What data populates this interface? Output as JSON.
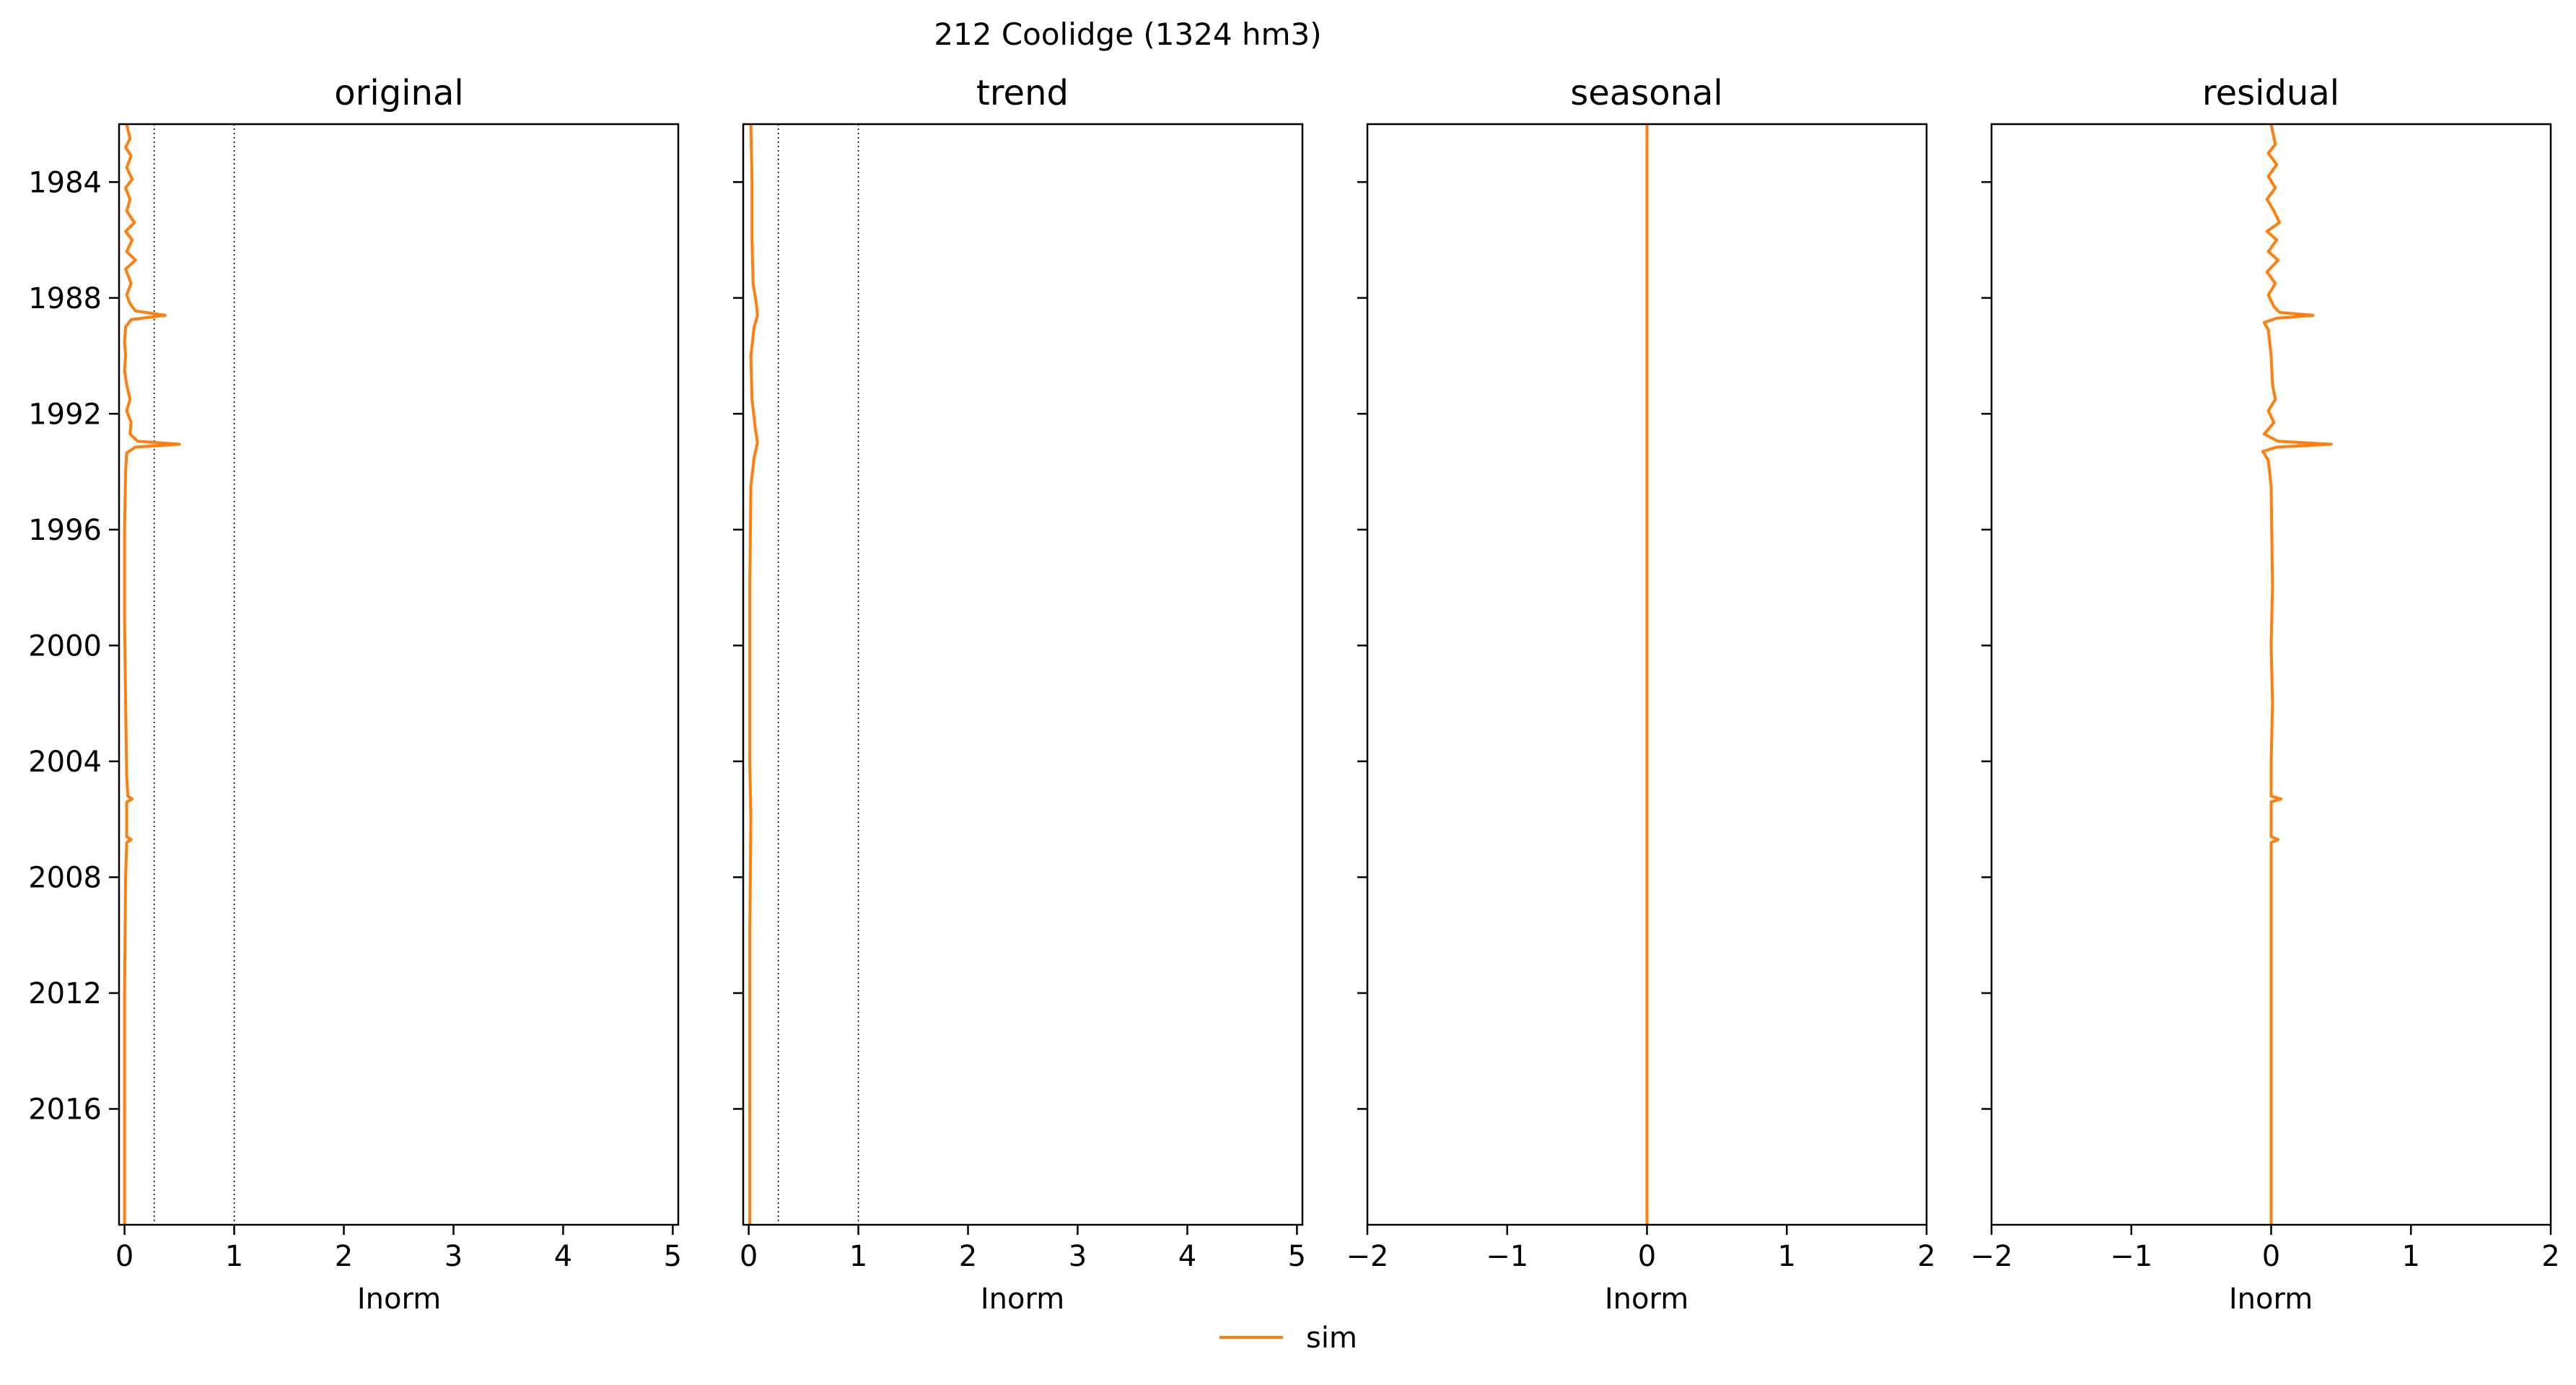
{
  "figure": {
    "suptitle": "212  Coolidge (1324 hm3)",
    "legend_label": "sim",
    "series_color": "#ff7f0e"
  },
  "chart_data": [
    {
      "type": "line",
      "orientation": "vertical-time",
      "title": "original",
      "xlabel": "Inorm",
      "xlim": [
        -0.05,
        5.05
      ],
      "xticks": [
        0,
        1,
        2,
        3,
        4,
        5
      ],
      "xtick_labels": [
        "0",
        "1",
        "2",
        "3",
        "4",
        "5"
      ],
      "ylim": [
        2020.0,
        1982.0
      ],
      "yticks": [
        1984,
        1988,
        1992,
        1996,
        2000,
        2004,
        2008,
        2012,
        2016
      ],
      "ytick_labels": [
        "1984",
        "1988",
        "1992",
        "1996",
        "2000",
        "2004",
        "2008",
        "2012",
        "2016"
      ],
      "reference_lines": [
        0.27,
        1.0
      ],
      "series": [
        {
          "name": "sim",
          "color": "#ff7f0e",
          "points": [
            {
              "y": 1982.0,
              "x": 0.02
            },
            {
              "y": 1982.5,
              "x": 0.05
            },
            {
              "y": 1982.8,
              "x": 0.01
            },
            {
              "y": 1983.1,
              "x": 0.06
            },
            {
              "y": 1983.5,
              "x": 0.02
            },
            {
              "y": 1983.9,
              "x": 0.07
            },
            {
              "y": 1984.2,
              "x": 0.01
            },
            {
              "y": 1984.6,
              "x": 0.05
            },
            {
              "y": 1985.0,
              "x": 0.02
            },
            {
              "y": 1985.4,
              "x": 0.09
            },
            {
              "y": 1985.7,
              "x": 0.01
            },
            {
              "y": 1986.0,
              "x": 0.07
            },
            {
              "y": 1986.4,
              "x": 0.02
            },
            {
              "y": 1986.7,
              "x": 0.1
            },
            {
              "y": 1987.0,
              "x": 0.01
            },
            {
              "y": 1987.5,
              "x": 0.06
            },
            {
              "y": 1987.9,
              "x": 0.02
            },
            {
              "y": 1988.2,
              "x": 0.05
            },
            {
              "y": 1988.45,
              "x": 0.1
            },
            {
              "y": 1988.6,
              "x": 0.37
            },
            {
              "y": 1988.75,
              "x": 0.06
            },
            {
              "y": 1989.0,
              "x": 0.01
            },
            {
              "y": 1989.5,
              "x": 0.0
            },
            {
              "y": 1990.0,
              "x": 0.01
            },
            {
              "y": 1990.5,
              "x": 0.0
            },
            {
              "y": 1991.0,
              "x": 0.02
            },
            {
              "y": 1991.5,
              "x": 0.05
            },
            {
              "y": 1991.9,
              "x": 0.02
            },
            {
              "y": 1992.3,
              "x": 0.06
            },
            {
              "y": 1992.7,
              "x": 0.05
            },
            {
              "y": 1992.95,
              "x": 0.12
            },
            {
              "y": 1993.05,
              "x": 0.5
            },
            {
              "y": 1993.15,
              "x": 0.1
            },
            {
              "y": 1993.35,
              "x": 0.02
            },
            {
              "y": 1994.0,
              "x": 0.01
            },
            {
              "y": 1996.0,
              "x": 0.0
            },
            {
              "y": 1999.0,
              "x": 0.0
            },
            {
              "y": 2002.0,
              "x": 0.01
            },
            {
              "y": 2004.5,
              "x": 0.02
            },
            {
              "y": 2005.2,
              "x": 0.03
            },
            {
              "y": 2005.3,
              "x": 0.07
            },
            {
              "y": 2005.4,
              "x": 0.02
            },
            {
              "y": 2006.6,
              "x": 0.02
            },
            {
              "y": 2006.7,
              "x": 0.06
            },
            {
              "y": 2006.8,
              "x": 0.02
            },
            {
              "y": 2008.0,
              "x": 0.01
            },
            {
              "y": 2012.0,
              "x": 0.0
            },
            {
              "y": 2016.0,
              "x": 0.0
            },
            {
              "y": 2020.0,
              "x": 0.0
            }
          ]
        }
      ]
    },
    {
      "type": "line",
      "orientation": "vertical-time",
      "title": "trend",
      "xlabel": "Inorm",
      "xlim": [
        -0.05,
        5.05
      ],
      "xticks": [
        0,
        1,
        2,
        3,
        4,
        5
      ],
      "xtick_labels": [
        "0",
        "1",
        "2",
        "3",
        "4",
        "5"
      ],
      "ylim": [
        2020.0,
        1982.0
      ],
      "yticks": [
        1984,
        1988,
        1992,
        1996,
        2000,
        2004,
        2008,
        2012,
        2016
      ],
      "reference_lines": [
        0.27,
        1.0
      ],
      "series": [
        {
          "name": "sim",
          "color": "#ff7f0e",
          "points": [
            {
              "y": 1982.0,
              "x": 0.02
            },
            {
              "y": 1984.0,
              "x": 0.03
            },
            {
              "y": 1986.0,
              "x": 0.03
            },
            {
              "y": 1987.5,
              "x": 0.04
            },
            {
              "y": 1988.2,
              "x": 0.07
            },
            {
              "y": 1988.6,
              "x": 0.08
            },
            {
              "y": 1989.0,
              "x": 0.05
            },
            {
              "y": 1990.0,
              "x": 0.02
            },
            {
              "y": 1991.5,
              "x": 0.03
            },
            {
              "y": 1992.5,
              "x": 0.06
            },
            {
              "y": 1993.0,
              "x": 0.08
            },
            {
              "y": 1993.5,
              "x": 0.05
            },
            {
              "y": 1994.5,
              "x": 0.02
            },
            {
              "y": 1998.0,
              "x": 0.01
            },
            {
              "y": 2004.0,
              "x": 0.01
            },
            {
              "y": 2006.0,
              "x": 0.02
            },
            {
              "y": 2010.0,
              "x": 0.01
            },
            {
              "y": 2020.0,
              "x": 0.01
            }
          ]
        }
      ]
    },
    {
      "type": "line",
      "orientation": "vertical-time",
      "title": "seasonal",
      "xlabel": "Inorm",
      "xlim": [
        -2,
        2
      ],
      "xticks": [
        -2,
        -1,
        0,
        1,
        2
      ],
      "xtick_labels": [
        "−2",
        "−1",
        "0",
        "1",
        "2"
      ],
      "ylim": [
        2020.0,
        1982.0
      ],
      "yticks": [
        1984,
        1988,
        1992,
        1996,
        2000,
        2004,
        2008,
        2012,
        2016
      ],
      "series": [
        {
          "name": "sim",
          "color": "#ff7f0e",
          "points": [
            {
              "y": 1982.0,
              "x": 0.0
            },
            {
              "y": 2020.0,
              "x": 0.0
            }
          ]
        }
      ]
    },
    {
      "type": "line",
      "orientation": "vertical-time",
      "title": "residual",
      "xlabel": "Inorm",
      "xlim": [
        -2,
        2
      ],
      "xticks": [
        -2,
        -1,
        0,
        1,
        2
      ],
      "xtick_labels": [
        "−2",
        "−1",
        "0",
        "1",
        "2"
      ],
      "ylim": [
        2020.0,
        1982.0
      ],
      "yticks": [
        1984,
        1988,
        1992,
        1996,
        2000,
        2004,
        2008,
        2012,
        2016
      ],
      "series": [
        {
          "name": "sim",
          "color": "#ff7f0e",
          "points": [
            {
              "y": 1982.0,
              "x": 0.0
            },
            {
              "y": 1982.7,
              "x": 0.03
            },
            {
              "y": 1983.0,
              "x": -0.02
            },
            {
              "y": 1983.4,
              "x": 0.04
            },
            {
              "y": 1983.8,
              "x": -0.02
            },
            {
              "y": 1984.2,
              "x": 0.03
            },
            {
              "y": 1984.6,
              "x": -0.03
            },
            {
              "y": 1985.0,
              "x": 0.02
            },
            {
              "y": 1985.4,
              "x": 0.06
            },
            {
              "y": 1985.7,
              "x": -0.03
            },
            {
              "y": 1986.0,
              "x": 0.04
            },
            {
              "y": 1986.4,
              "x": -0.02
            },
            {
              "y": 1986.7,
              "x": 0.05
            },
            {
              "y": 1987.1,
              "x": -0.03
            },
            {
              "y": 1987.5,
              "x": 0.03
            },
            {
              "y": 1987.9,
              "x": -0.02
            },
            {
              "y": 1988.3,
              "x": 0.02
            },
            {
              "y": 1988.5,
              "x": 0.06
            },
            {
              "y": 1988.6,
              "x": 0.3
            },
            {
              "y": 1988.7,
              "x": 0.04
            },
            {
              "y": 1988.85,
              "x": -0.05
            },
            {
              "y": 1989.1,
              "x": -0.02
            },
            {
              "y": 1990.0,
              "x": 0.0
            },
            {
              "y": 1991.0,
              "x": 0.01
            },
            {
              "y": 1991.5,
              "x": 0.03
            },
            {
              "y": 1991.9,
              "x": -0.02
            },
            {
              "y": 1992.3,
              "x": 0.02
            },
            {
              "y": 1992.7,
              "x": -0.05
            },
            {
              "y": 1992.95,
              "x": 0.05
            },
            {
              "y": 1993.05,
              "x": 0.43
            },
            {
              "y": 1993.15,
              "x": 0.04
            },
            {
              "y": 1993.3,
              "x": -0.06
            },
            {
              "y": 1993.6,
              "x": -0.02
            },
            {
              "y": 1994.5,
              "x": 0.0
            },
            {
              "y": 1998.0,
              "x": 0.01
            },
            {
              "y": 2000.0,
              "x": 0.0
            },
            {
              "y": 2002.0,
              "x": 0.01
            },
            {
              "y": 2004.0,
              "x": 0.0
            },
            {
              "y": 2005.2,
              "x": 0.0
            },
            {
              "y": 2005.3,
              "x": 0.07
            },
            {
              "y": 2005.4,
              "x": 0.0
            },
            {
              "y": 2006.6,
              "x": 0.0
            },
            {
              "y": 2006.7,
              "x": 0.05
            },
            {
              "y": 2006.8,
              "x": 0.0
            },
            {
              "y": 2010.0,
              "x": 0.0
            },
            {
              "y": 2020.0,
              "x": 0.0
            }
          ]
        }
      ]
    }
  ]
}
